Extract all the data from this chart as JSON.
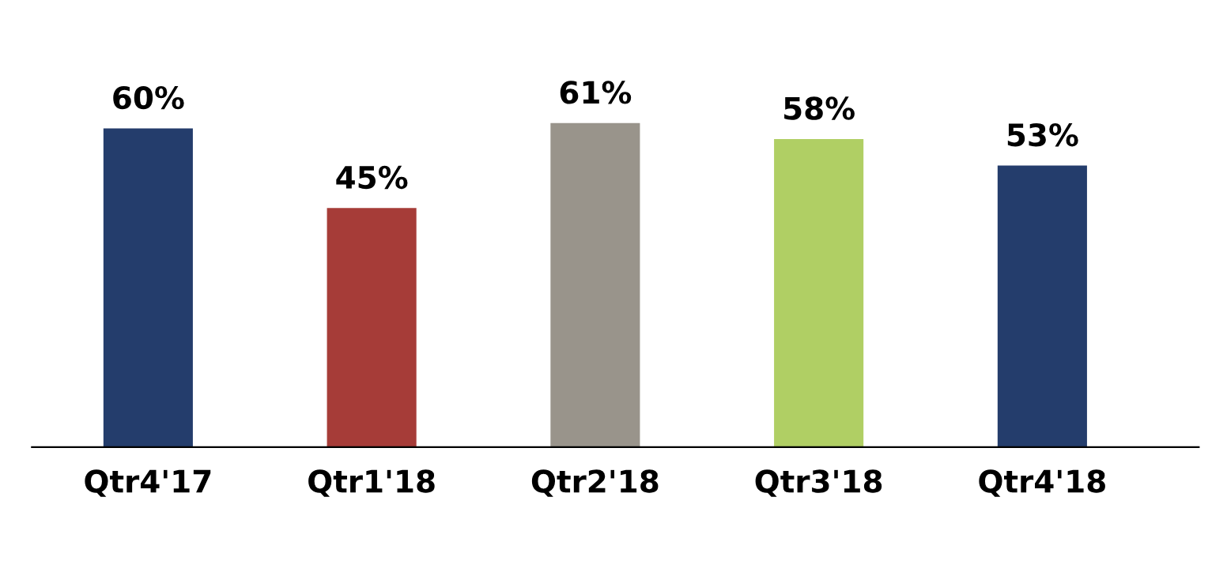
{
  "chart_data": {
    "type": "bar",
    "categories": [
      "Qtr4'17",
      "Qtr1'18",
      "Qtr2'18",
      "Qtr3'18",
      "Qtr4'18"
    ],
    "values": [
      60,
      45,
      61,
      58,
      53
    ],
    "colors": [
      "#243d6c",
      "#a63c38",
      "#99948b",
      "#b0cf64",
      "#243d6c"
    ],
    "value_labels": [
      "60%",
      "45%",
      "61%",
      "58%",
      "53%"
    ],
    "grid": false,
    "legend": false,
    "tick_labels": "x"
  }
}
